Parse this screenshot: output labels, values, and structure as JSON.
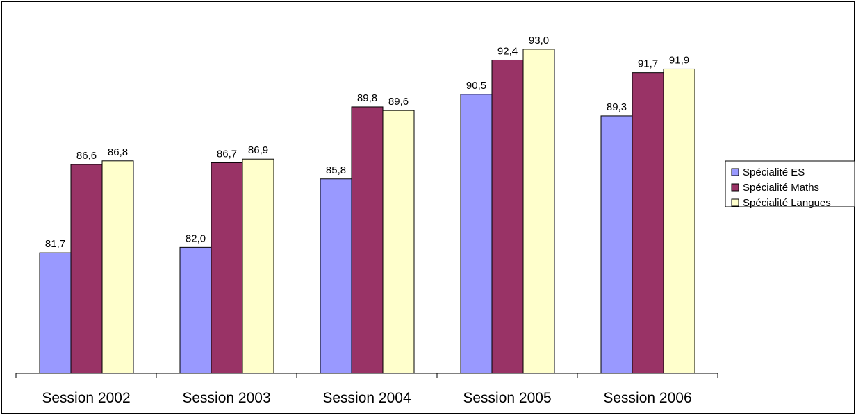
{
  "chart_data": {
    "type": "bar",
    "categories": [
      "Session 2002",
      "Session 2003",
      "Session 2004",
      "Session 2005",
      "Session 2006"
    ],
    "series": [
      {
        "name": "Spécialité ES",
        "values": [
          "81,7",
          "82,0",
          "85,8",
          "90,5",
          "89,3"
        ],
        "color": "#9999FF"
      },
      {
        "name": "Spécialité Maths",
        "values": [
          "86,6",
          "86,7",
          "89,8",
          "92,4",
          "91,7"
        ],
        "color": "#993366"
      },
      {
        "name": "Spécialité Langues",
        "values": [
          "86,8",
          "86,9",
          "89,6",
          "93,0",
          "91,9"
        ],
        "color": "#FFFFCC"
      }
    ],
    "ylim": [
      75,
      94.5
    ],
    "grid": false,
    "legend": "right",
    "data_labels": true
  }
}
